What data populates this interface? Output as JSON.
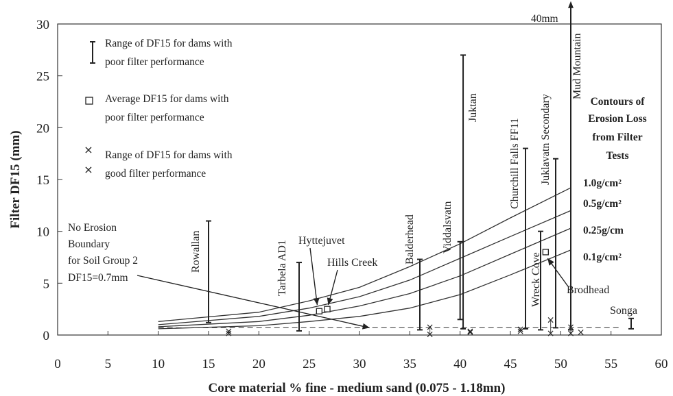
{
  "chart_data": {
    "type": "scatter",
    "xlabel": "Core material % fine - medium sand (0.075 - 1.18mn)",
    "ylabel": "Filter DF15 (mm)",
    "xlim": [
      0,
      60
    ],
    "ylim": [
      0,
      30
    ],
    "xticks": [
      "0",
      "5",
      "10",
      "15",
      "20",
      "25",
      "30",
      "35",
      "40",
      "45",
      "50",
      "55",
      "60"
    ],
    "yticks": [
      "0",
      "5",
      "10",
      "15",
      "20",
      "25",
      "30"
    ],
    "grid": false,
    "legend_position": "top-left",
    "legend": [
      {
        "marker": "range-bar",
        "text1": "Range of DF15 for dams with",
        "text2": "poor filter performance"
      },
      {
        "marker": "square",
        "text1": "Average DF15 for dams with",
        "text2": "poor filter performance"
      },
      {
        "marker": "x-range",
        "text1": "Range of DF15 for dams with",
        "text2": "good filter performance"
      }
    ],
    "poor_dams": [
      {
        "name": "Rowallan",
        "x": 15,
        "low": 1.2,
        "high": 11.0
      },
      {
        "name": "Tarbela AD1",
        "x": 24,
        "low": 0.4,
        "high": 7.0
      },
      {
        "name": "Balderhead",
        "x": 36,
        "low": 0.5,
        "high": 7.3
      },
      {
        "name": "Viddalsvatn",
        "x": 40,
        "low": 1.5,
        "high": 9.0
      },
      {
        "name": "Juktan",
        "x": 40.3,
        "low": 0.6,
        "high": 27.0
      },
      {
        "name": "Churchill Falls FF11",
        "x": 46.5,
        "low": 0.6,
        "high": 18.0
      },
      {
        "name": "Wreck Cove",
        "x": 48,
        "low": 0.5,
        "high": 10.0
      },
      {
        "name": "Juklavatn Secondary",
        "x": 49.5,
        "low": 0.7,
        "high": 17.0
      },
      {
        "name": "Mud Mountain",
        "x": 51,
        "low": 0.5,
        "high": 40
      },
      {
        "name": "Songa",
        "x": 57,
        "low": 0.6,
        "high": 1.6
      }
    ],
    "averages": [
      {
        "name": "Hyttejuvet",
        "x": 26,
        "y": 2.3
      },
      {
        "name": "Hills Creek",
        "x": 26.8,
        "y": 2.5
      },
      {
        "name": "Brodhead",
        "x": 48.5,
        "y": 8.0
      }
    ],
    "good_ranges": [
      {
        "x": 17,
        "low": 0.2,
        "high": 0.4
      },
      {
        "x": 37,
        "low": 0.1,
        "high": 0.8
      },
      {
        "x": 41,
        "low": 0.3,
        "high": 0.4
      },
      {
        "x": 46,
        "low": 0.4,
        "high": 0.6
      },
      {
        "x": 49,
        "low": 0.2,
        "high": 1.5
      },
      {
        "x": 51,
        "low": 0.2,
        "high": 0.8
      },
      {
        "x": 52,
        "low": 0.3,
        "high": 0.3
      }
    ],
    "off_scale_label": "40mm",
    "contours_title": [
      "Contours of",
      "Erosion Loss",
      "from Filter",
      "Tests"
    ],
    "series": [
      {
        "name": "1.0g/cm²",
        "x": [
          10,
          20,
          25,
          30,
          35,
          40,
          45,
          51
        ],
        "y": [
          1.3,
          2.2,
          3.3,
          4.6,
          6.6,
          8.8,
          11.3,
          14.2
        ]
      },
      {
        "name": "0.5g/cm²",
        "x": [
          10,
          20,
          25,
          30,
          35,
          40,
          45,
          51
        ],
        "y": [
          1.0,
          1.8,
          2.6,
          3.7,
          5.3,
          7.4,
          9.5,
          12.0
        ]
      },
      {
        "name": "0.25g/cm",
        "x": [
          10,
          20,
          25,
          30,
          35,
          40,
          45,
          51
        ],
        "y": [
          0.8,
          1.3,
          1.9,
          2.8,
          4.0,
          5.7,
          7.8,
          10.3
        ]
      },
      {
        "name": "0.1g/cm²",
        "x": [
          10,
          20,
          25,
          30,
          35,
          40,
          45,
          51
        ],
        "y": [
          0.6,
          0.9,
          1.3,
          1.8,
          2.6,
          3.9,
          5.8,
          8.2
        ]
      }
    ],
    "boundary": {
      "y": 0.7,
      "x_start": 10,
      "x_end": 56
    },
    "annotation_lines": [
      "No Erosion",
      "Boundary",
      "for Soil Group 2",
      "DF15=0.7mm"
    ]
  }
}
